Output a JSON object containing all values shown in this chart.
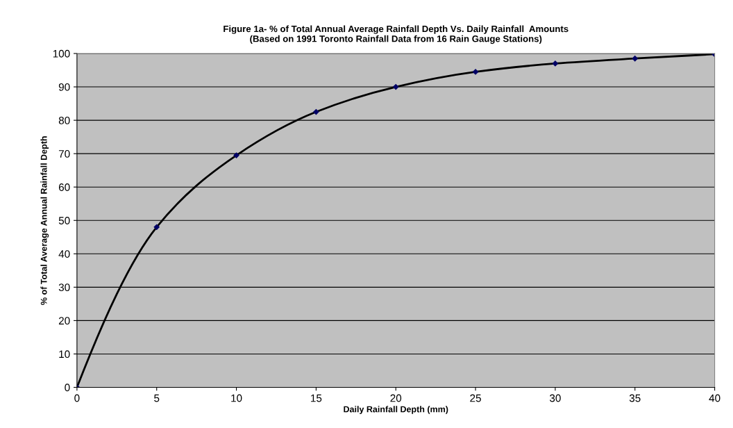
{
  "chart_data": {
    "type": "line",
    "title": "Figure 1a- % of Total Annual Average Rainfall Depth Vs. Daily Rainfall  Amounts\n(Based on 1991 Toronto Rainfall Data from 16 Rain Gauge Stations)",
    "xlabel": "Daily Rainfall Depth (mm)",
    "ylabel": "% of Total Average Annual Rainfall Depth",
    "x": [
      0,
      5,
      10,
      15,
      20,
      25,
      30,
      35,
      40
    ],
    "series": [
      {
        "color": "#000000",
        "values": [
          0,
          48,
          69.5,
          82.5,
          90,
          94.5,
          97,
          98.5,
          99.8
        ]
      }
    ],
    "xlim": [
      0,
      40
    ],
    "xticks": [
      0,
      5,
      10,
      15,
      20,
      25,
      30,
      35,
      40
    ],
    "ylim": [
      0,
      100
    ],
    "yticks": [
      0,
      10,
      20,
      30,
      40,
      50,
      60,
      70,
      80,
      90,
      100
    ],
    "grid": "y",
    "marker": "diamond",
    "line_style": "solid",
    "legend": false
  }
}
